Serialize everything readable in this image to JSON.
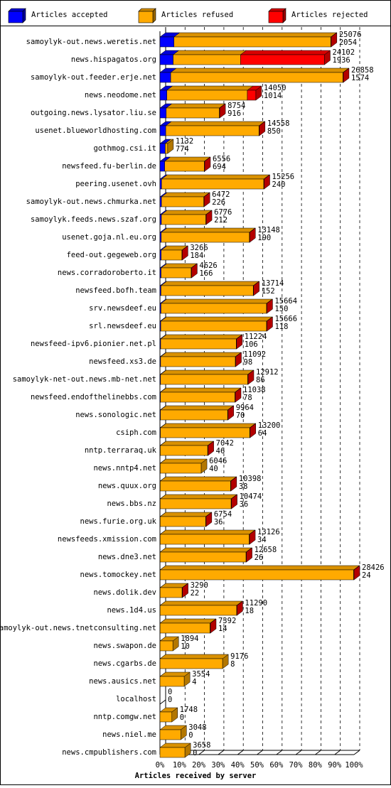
{
  "chart_data": {
    "type": "bar3d",
    "orientation": "horizontal",
    "stacked": true,
    "xlabel": "Articles received by server",
    "xlim": [
      0,
      28426
    ],
    "xticks": [
      {
        "value": 0,
        "label": "0%"
      },
      {
        "value": 2842.6,
        "label": "10%"
      },
      {
        "value": 5685.2,
        "label": "20%"
      },
      {
        "value": 8527.8,
        "label": "30%"
      },
      {
        "value": 11370.4,
        "label": "40%"
      },
      {
        "value": 14213,
        "label": "50%"
      },
      {
        "value": 17055.6,
        "label": "60%"
      },
      {
        "value": 19898.2,
        "label": "70%"
      },
      {
        "value": 22740.8,
        "label": "80%"
      },
      {
        "value": 25583.4,
        "label": "90%"
      },
      {
        "value": 28426,
        "label": "100%"
      }
    ],
    "grid": true,
    "categories": [
      "samoylyk-out.news.weretis.net",
      "news.hispagatos.org",
      "samoylyk-out.feeder.erje.net",
      "news.neodome.net",
      "outgoing.news.lysator.liu.se",
      "usenet.blueworldhosting.com",
      "gothmog.csi.it",
      "newsfeed.fu-berlin.de",
      "peering.usenet.ovh",
      "samoylyk-out.news.chmurka.net",
      "samoylyk.feeds.news.szaf.org",
      "usenet.goja.nl.eu.org",
      "feed-out.gegeweb.org",
      "news.corradoroberto.it",
      "newsfeed.bofh.team",
      "srv.newsdeef.eu",
      "srl.newsdeef.eu",
      "newsfeed-ipv6.pionier.net.pl",
      "newsfeed.xs3.de",
      "samoylyk-net-out.news.mb-net.net",
      "newsfeed.endofthelinebbs.com",
      "news.sonologic.net",
      "csiph.com",
      "nntp.terraraq.uk",
      "news.nntp4.net",
      "news.quux.org",
      "news.bbs.nz",
      "news.furie.org.uk",
      "newsfeeds.xmission.com",
      "news.dne3.net",
      "news.tomockey.net",
      "news.dolik.dev",
      "news.1d4.us",
      "samoylyk-out.news.tnetconsulting.net",
      "news.swapon.de",
      "news.cgarbs.de",
      "news.ausics.net",
      "localhost",
      "nntp.comgw.net",
      "news.niel.me",
      "news.cmpublishers.com"
    ],
    "totals": [
      25076,
      24102,
      26858,
      14050,
      8754,
      14558,
      1132,
      6556,
      15256,
      6472,
      6776,
      13148,
      3266,
      4626,
      13714,
      15664,
      15666,
      11224,
      11092,
      12912,
      11038,
      9964,
      13200,
      7042,
      6046,
      10398,
      10474,
      6754,
      13126,
      12658,
      28426,
      3290,
      11290,
      7392,
      1894,
      9176,
      3554,
      0,
      1748,
      3048,
      3658
    ],
    "series": [
      {
        "name": "Articles accepted",
        "color": "#0000ff",
        "values": [
          2054,
          1936,
          1574,
          1014,
          916,
          850,
          774,
          694,
          240,
          226,
          212,
          190,
          184,
          166,
          152,
          150,
          118,
          106,
          98,
          86,
          78,
          70,
          64,
          46,
          40,
          38,
          36,
          36,
          34,
          26,
          24,
          22,
          18,
          14,
          10,
          8,
          4,
          0,
          0,
          0,
          0
        ]
      },
      {
        "name": "Articles refused",
        "color": "#ffaa00",
        "values": [
          22972,
          9866,
          25234,
          11786,
          7788,
          13658,
          358,
          5812,
          14966,
          6196,
          6514,
          12908,
          3032,
          4410,
          13512,
          15464,
          15498,
          11068,
          10944,
          12776,
          10910,
          9844,
          13086,
          6946,
          6006,
          10310,
          10388,
          6668,
          13042,
          12582,
          28352,
          3218,
          11222,
          7328,
          1884,
          9168,
          3550,
          0,
          1748,
          3048,
          3658
        ]
      },
      {
        "name": "Articles rejected",
        "color": "#ff0000",
        "values": [
          50,
          12300,
          50,
          1250,
          50,
          50,
          0,
          50,
          50,
          50,
          50,
          50,
          50,
          50,
          50,
          50,
          50,
          50,
          50,
          50,
          50,
          50,
          50,
          50,
          0,
          50,
          50,
          50,
          50,
          50,
          50,
          50,
          50,
          50,
          0,
          0,
          0,
          0,
          0,
          0,
          0
        ]
      }
    ]
  }
}
